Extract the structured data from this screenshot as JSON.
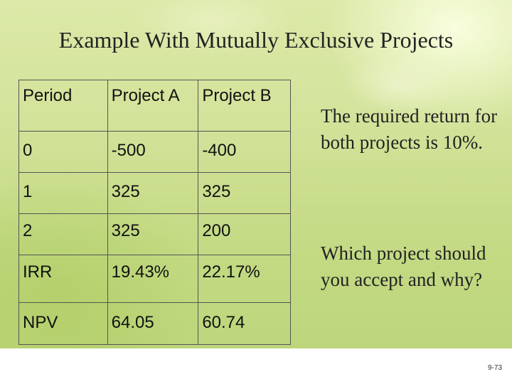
{
  "title": "Example With Mutually Exclusive Projects",
  "table": {
    "headers": [
      "Period",
      "Project A",
      "Project B"
    ],
    "rows": [
      [
        "0",
        "-500",
        "-400"
      ],
      [
        "1",
        "325",
        "325"
      ],
      [
        "2",
        "325",
        "200"
      ],
      [
        "IRR",
        "19.43%",
        "22.17%"
      ],
      [
        "NPV",
        "64.05",
        "60.74"
      ]
    ]
  },
  "notes": {
    "required_return": "The required return for both projects is 10%.",
    "question": "Which project should you accept and why?"
  },
  "page_number": "9-73",
  "colors": {
    "background_green": "#c9df8e",
    "text": "#222222",
    "table_border": "#555555"
  }
}
